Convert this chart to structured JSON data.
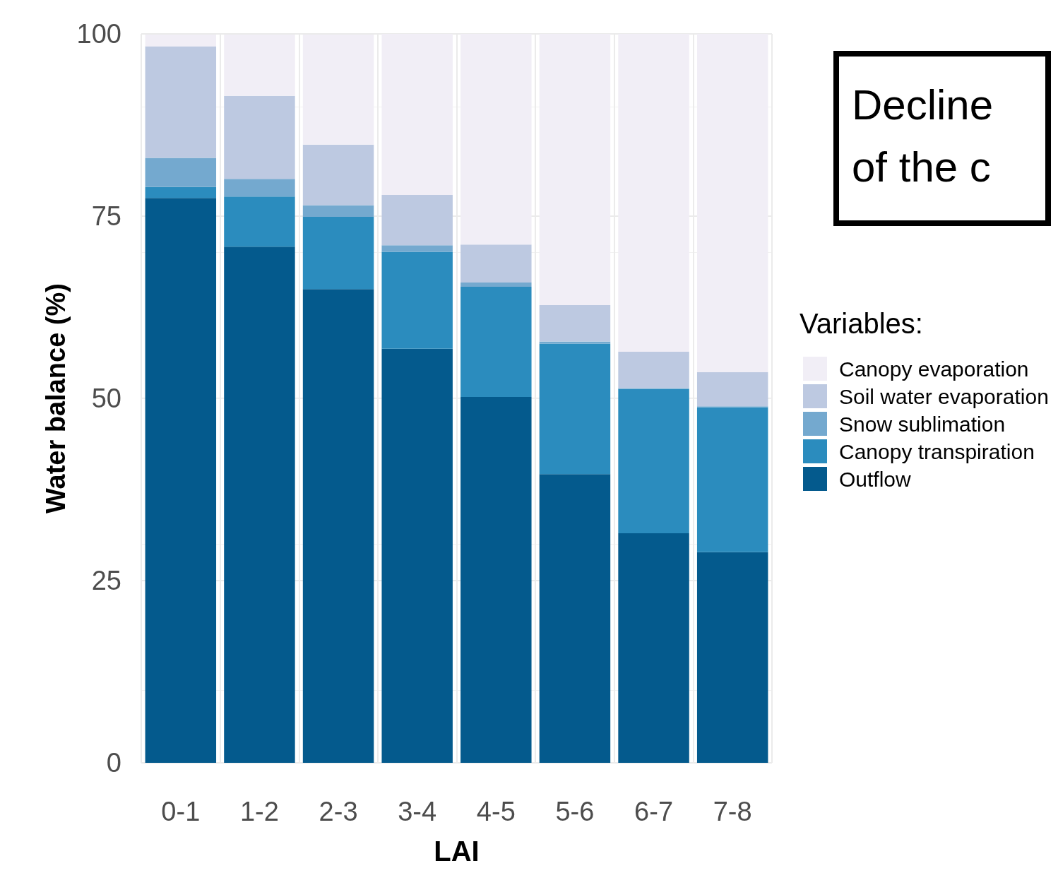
{
  "chart_data": {
    "type": "bar",
    "stacked": true,
    "xlabel": "LAI",
    "ylabel": "Water balance (%)",
    "legend_title": "Variables:",
    "legend": "right",
    "grid": true,
    "categories": [
      "0-1",
      "1-2",
      "2-3",
      "3-4",
      "4-5",
      "5-6",
      "6-7",
      "7-8"
    ],
    "series": [
      {
        "name": "Outflow",
        "color": "#045a8d",
        "values": [
          77.5,
          70.8,
          65.0,
          56.8,
          50.2,
          39.6,
          31.5,
          28.9
        ]
      },
      {
        "name": "Canopy transpiration",
        "color": "#2b8cbe",
        "values": [
          1.5,
          6.9,
          9.9,
          13.3,
          15.1,
          17.9,
          19.8,
          19.9
        ]
      },
      {
        "name": "Snow sublimation",
        "color": "#74a9cf",
        "values": [
          4.0,
          2.4,
          1.6,
          0.9,
          0.6,
          0.3,
          0.1,
          0.1
        ]
      },
      {
        "name": "Soil water evaporation",
        "color": "#bdc9e1",
        "values": [
          15.3,
          11.4,
          8.3,
          6.9,
          5.2,
          5.0,
          5.0,
          4.7
        ]
      },
      {
        "name": "Canopy evaporation",
        "color": "#f1eef6",
        "values": [
          1.6,
          8.4,
          15.1,
          22.2,
          28.9,
          37.2,
          43.6,
          46.5
        ]
      }
    ],
    "ylim": [
      0,
      100
    ],
    "yticks": [
      0,
      25,
      50,
      75,
      100
    ],
    "annotations": [
      "Decline of the c"
    ]
  }
}
